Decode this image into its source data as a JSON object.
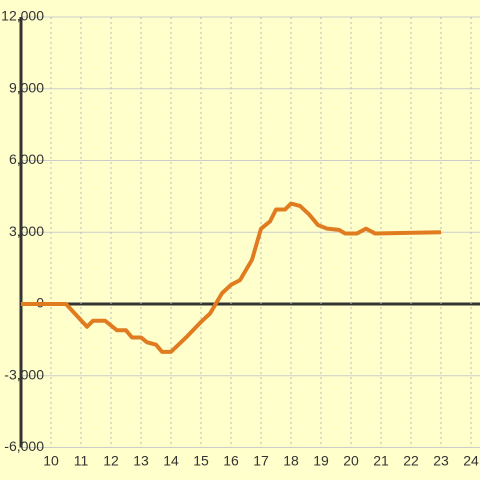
{
  "chart_data": {
    "type": "line",
    "x": [
      9,
      10.5,
      11.2,
      11.4,
      11.8,
      12.2,
      12.5,
      12.7,
      13.0,
      13.2,
      13.5,
      13.7,
      14.0,
      14.5,
      15.0,
      15.3,
      15.7,
      16.0,
      16.3,
      16.7,
      17.0,
      17.3,
      17.5,
      17.8,
      18.0,
      18.3,
      18.6,
      18.9,
      19.2,
      19.6,
      19.8,
      20.2,
      20.5,
      20.8,
      23.0
    ],
    "values": [
      0,
      0,
      -950,
      -700,
      -700,
      -1100,
      -1100,
      -1400,
      -1400,
      -1600,
      -1700,
      -2000,
      -2000,
      -1400,
      -750,
      -400,
      450,
      800,
      1000,
      1850,
      3150,
      3450,
      3950,
      3950,
      4200,
      4100,
      3750,
      3300,
      3150,
      3100,
      2950,
      2950,
      3150,
      2950,
      3000
    ],
    "color": "#e07b20",
    "xlim": [
      9,
      24.3
    ],
    "xticks": [
      10,
      11,
      12,
      13,
      14,
      15,
      16,
      17,
      18,
      19,
      20,
      21,
      22,
      23,
      24
    ],
    "ylim": [
      -6000,
      12000
    ],
    "yticks": [
      {
        "value": 12000,
        "label": "12,000"
      },
      {
        "value": 9000,
        "label": "9,000"
      },
      {
        "value": 6000,
        "label": "6,000"
      },
      {
        "value": 3000,
        "label": "3,000"
      },
      0,
      {
        "value": -3000,
        "label": "-3,000"
      },
      {
        "value": -6000,
        "label": "-6,000"
      }
    ],
    "grid": true
  }
}
